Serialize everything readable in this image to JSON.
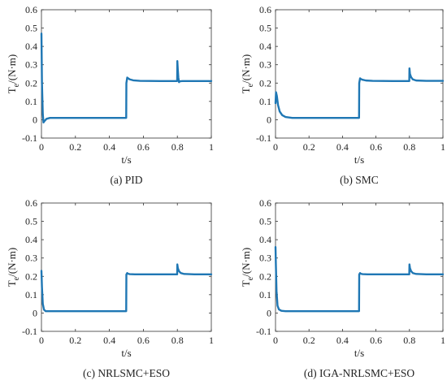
{
  "figure": {
    "background": "#ffffff",
    "line_color": "#1f77b4",
    "axis_color": "#333333"
  },
  "chart_data": [
    {
      "type": "line",
      "caption": "(a) PID",
      "xlabel": "t/s",
      "ylabel_main": "T",
      "ylabel_sub": "e",
      "ylabel_unit": "/(N·m)",
      "xlim": [
        0,
        1
      ],
      "ylim": [
        -0.1,
        0.6
      ],
      "xticks": [
        0,
        0.2,
        0.4,
        0.6,
        0.8,
        1
      ],
      "xtick_labels": [
        "0",
        "0.2",
        "0.4",
        "0.6",
        "0.8",
        "1"
      ],
      "yticks": [
        -0.1,
        0,
        0.1,
        0.2,
        0.3,
        0.4,
        0.5,
        0.6
      ],
      "ytick_labels": [
        "-0.1",
        "0",
        "0.1",
        "0.2",
        "0.3",
        "0.4",
        "0.5",
        "0.6"
      ],
      "grid": false,
      "series": [
        {
          "x": [
            0,
            0.003,
            0.008,
            0.012,
            0.02,
            0.03,
            0.05,
            0.1,
            0.3,
            0.499,
            0.5,
            0.505,
            0.51,
            0.52,
            0.54,
            0.58,
            0.7,
            0.799,
            0.8,
            0.803,
            0.806,
            0.81,
            0.815,
            0.83,
            0.9,
            1
          ],
          "y": [
            0.47,
            0.2,
            0.03,
            -0.015,
            -0.005,
            0.005,
            0.01,
            0.01,
            0.01,
            0.01,
            0.2,
            0.23,
            0.226,
            0.22,
            0.215,
            0.212,
            0.211,
            0.211,
            0.32,
            0.27,
            0.23,
            0.205,
            0.21,
            0.211,
            0.211,
            0.211
          ]
        }
      ]
    },
    {
      "type": "line",
      "caption": "(b) SMC",
      "xlabel": "t/s",
      "ylabel_main": "T",
      "ylabel_sub": "e",
      "ylabel_unit": "/(N·m)",
      "xlim": [
        0,
        1
      ],
      "ylim": [
        -0.1,
        0.6
      ],
      "xticks": [
        0,
        0.2,
        0.4,
        0.6,
        0.8,
        1
      ],
      "xtick_labels": [
        "0",
        "0.2",
        "0.4",
        "0.6",
        "0.8",
        "1"
      ],
      "yticks": [
        -0.1,
        0,
        0.1,
        0.2,
        0.3,
        0.4,
        0.5,
        0.6
      ],
      "ytick_labels": [
        "-0.1",
        "0",
        "0.1",
        "0.2",
        "0.3",
        "0.4",
        "0.5",
        "0.6"
      ],
      "grid": false,
      "series": [
        {
          "x": [
            0,
            0.003,
            0.008,
            0.015,
            0.025,
            0.04,
            0.06,
            0.1,
            0.2,
            0.499,
            0.5,
            0.505,
            0.51,
            0.52,
            0.54,
            0.58,
            0.7,
            0.799,
            0.8,
            0.803,
            0.81,
            0.82,
            0.84,
            0.9,
            1
          ],
          "y": [
            0.09,
            0.15,
            0.13,
            0.08,
            0.045,
            0.025,
            0.015,
            0.01,
            0.01,
            0.01,
            0.2,
            0.226,
            0.222,
            0.218,
            0.214,
            0.212,
            0.211,
            0.211,
            0.28,
            0.25,
            0.232,
            0.22,
            0.214,
            0.212,
            0.212
          ]
        }
      ]
    },
    {
      "type": "line",
      "caption": "(c) NRLSMC+ESO",
      "xlabel": "t/s",
      "ylabel_main": "T",
      "ylabel_sub": "e",
      "ylabel_unit": "/(N·m)",
      "xlim": [
        0,
        1
      ],
      "ylim": [
        -0.1,
        0.6
      ],
      "xticks": [
        0,
        0.2,
        0.4,
        0.6,
        0.8,
        1
      ],
      "xtick_labels": [
        "0",
        "0.2",
        "0.4",
        "0.6",
        "0.8",
        "1"
      ],
      "yticks": [
        -0.1,
        0,
        0.1,
        0.2,
        0.3,
        0.4,
        0.5,
        0.6
      ],
      "ytick_labels": [
        "-0.1",
        "0",
        "0.1",
        "0.2",
        "0.3",
        "0.4",
        "0.5",
        "0.6"
      ],
      "grid": false,
      "series": [
        {
          "x": [
            0,
            0.003,
            0.008,
            0.015,
            0.025,
            0.05,
            0.2,
            0.499,
            0.5,
            0.505,
            0.51,
            0.52,
            0.55,
            0.7,
            0.799,
            0.8,
            0.803,
            0.81,
            0.82,
            0.84,
            0.9,
            1
          ],
          "y": [
            0.23,
            0.14,
            0.05,
            0.018,
            0.01,
            0.01,
            0.01,
            0.01,
            0.21,
            0.218,
            0.214,
            0.212,
            0.211,
            0.211,
            0.211,
            0.265,
            0.245,
            0.228,
            0.218,
            0.213,
            0.211,
            0.211
          ]
        }
      ]
    },
    {
      "type": "line",
      "caption": "(d) IGA-NRLSMC+ESO",
      "xlabel": "t/s",
      "ylabel_main": "T",
      "ylabel_sub": "e",
      "ylabel_unit": "/(N·m)",
      "xlim": [
        0,
        1
      ],
      "ylim": [
        -0.1,
        0.6
      ],
      "xticks": [
        0,
        0.2,
        0.4,
        0.6,
        0.8,
        1
      ],
      "xtick_labels": [
        "0",
        "0.2",
        "0.4",
        "0.6",
        "0.8",
        "1"
      ],
      "yticks": [
        -0.1,
        0,
        0.1,
        0.2,
        0.3,
        0.4,
        0.5,
        0.6
      ],
      "ytick_labels": [
        "-0.1",
        "0",
        "0.1",
        "0.2",
        "0.3",
        "0.4",
        "0.5",
        "0.6"
      ],
      "grid": false,
      "series": [
        {
          "x": [
            0,
            0.002,
            0.006,
            0.012,
            0.02,
            0.035,
            0.06,
            0.2,
            0.499,
            0.5,
            0.505,
            0.51,
            0.52,
            0.55,
            0.7,
            0.799,
            0.8,
            0.803,
            0.81,
            0.82,
            0.84,
            0.9,
            1
          ],
          "y": [
            0.36,
            0.27,
            0.12,
            0.04,
            0.02,
            0.012,
            0.01,
            0.01,
            0.01,
            0.21,
            0.218,
            0.214,
            0.212,
            0.211,
            0.211,
            0.211,
            0.265,
            0.245,
            0.228,
            0.218,
            0.213,
            0.211,
            0.211
          ]
        }
      ]
    }
  ]
}
